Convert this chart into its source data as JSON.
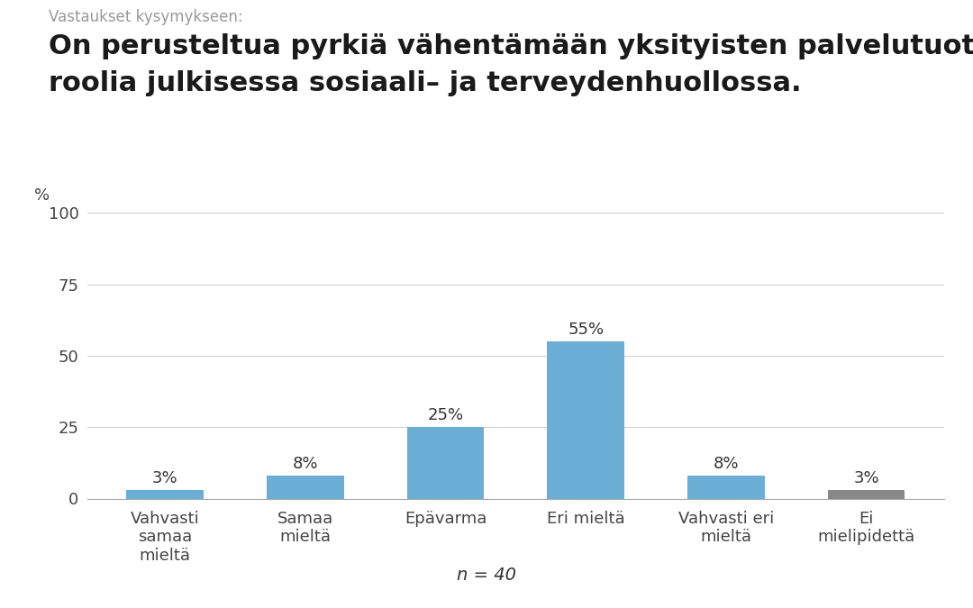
{
  "supertitle": "Vastaukset kysymykseen:",
  "title_line1": "On perusteltua pyrkiä vähentämään yksityisten palvelutuottajien",
  "title_line2": "roolia julkisessa sosiaali– ja terveydenhuollossa.",
  "categories": [
    "Vahvasti\nsamaa\nmieltä",
    "Samaa\nmieltä",
    "Epävarma",
    "Eri mieltä",
    "Vahvasti eri\nmieltä",
    "Ei\nmielipidettä"
  ],
  "values": [
    3,
    8,
    25,
    55,
    8,
    3
  ],
  "bar_colors": [
    "#6aaed6",
    "#6aaed6",
    "#6aaed6",
    "#6aaed6",
    "#6aaed6",
    "#888888"
  ],
  "ylabel": "%",
  "ylim": [
    0,
    100
  ],
  "yticks": [
    0,
    25,
    50,
    75,
    100
  ],
  "n_label": "n = 40",
  "background_color": "#ffffff",
  "grid_color": "#d0d0d0",
  "title_fontsize": 22,
  "supertitle_fontsize": 12,
  "tick_fontsize": 13,
  "label_fontsize": 13,
  "n_fontsize": 14
}
